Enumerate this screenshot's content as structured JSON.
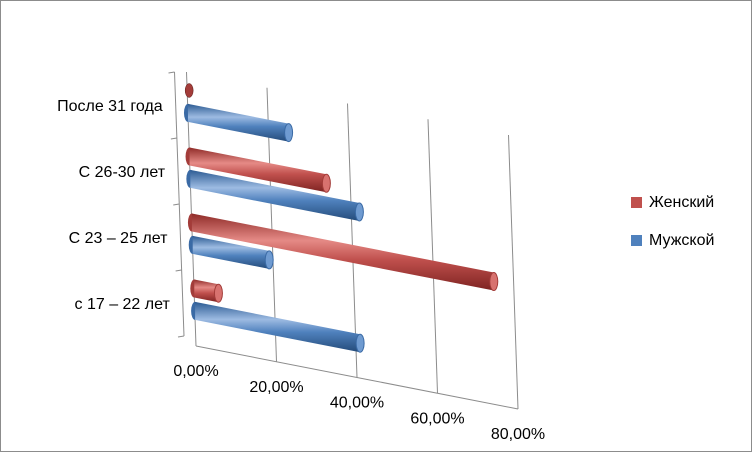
{
  "chart_data": {
    "type": "bar",
    "orientation": "horizontal",
    "style": "3d-cylinder",
    "categories": [
      "с 17 – 22 лет",
      "С 23 – 25 лет",
      "С 26-30 лет",
      "После 31 года"
    ],
    "series": [
      {
        "name": "Женский",
        "color": "#c0504d",
        "values": [
          6,
          75,
          34,
          0
        ]
      },
      {
        "name": "Мужской",
        "color": "#4f81bd",
        "values": [
          41,
          19,
          42,
          25
        ]
      }
    ],
    "x_ticks": [
      "0,00%",
      "20,00%",
      "40,00%",
      "60,00%",
      "80,00%"
    ],
    "xlim": [
      0,
      80
    ],
    "legend_position": "right",
    "grid": true,
    "title": "",
    "xlabel": "",
    "ylabel": ""
  }
}
